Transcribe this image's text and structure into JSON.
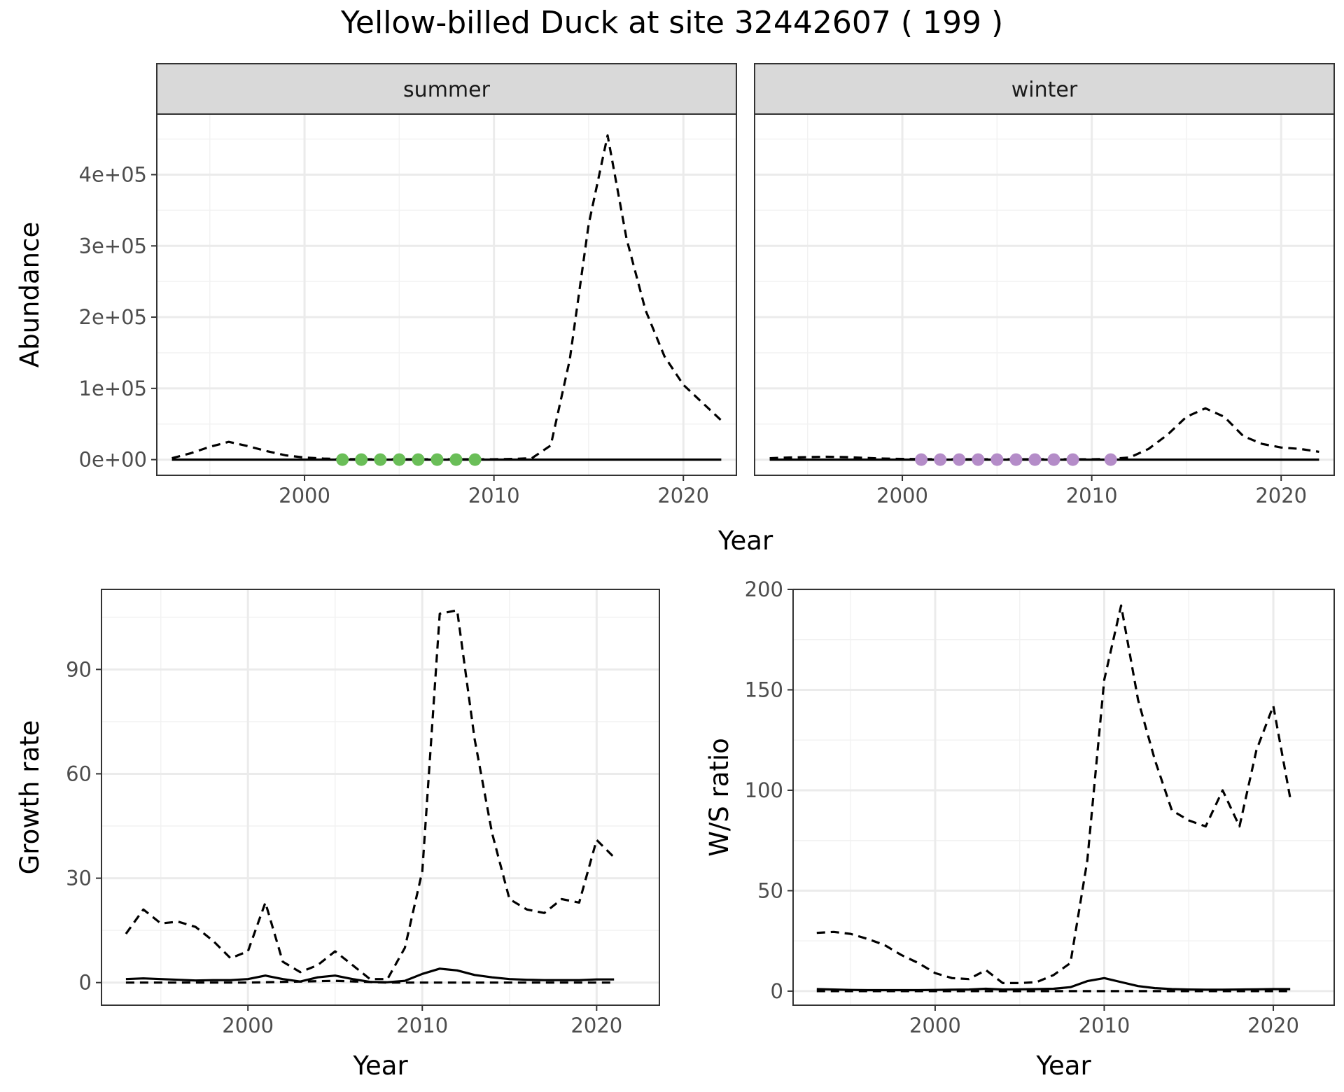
{
  "title": "Yellow-billed Duck at site 32442607 ( 199 )",
  "chart_data": [
    {
      "id": "abundance",
      "type": "line",
      "facets": [
        "summer",
        "winter"
      ],
      "xlabel": "Year",
      "ylabel": "Abundance",
      "xlim": [
        1992.2,
        2022.8
      ],
      "ylim": [
        -22000,
        485000
      ],
      "x_ticks": [
        2000,
        2010,
        2020
      ],
      "y_ticks": [
        0,
        100000,
        200000,
        300000,
        400000
      ],
      "y_tick_labels": [
        "0e+00",
        "1e+05",
        "2e+05",
        "3e+05",
        "4e+05"
      ],
      "grid": true,
      "panels": [
        {
          "facet": "summer",
          "point_color": "#6ABE58",
          "series": [
            {
              "style": "dashed",
              "x": [
                1993,
                1994,
                1995,
                1996,
                1997,
                1998,
                1999,
                2000,
                2001,
                2002,
                2003,
                2004,
                2005,
                2006,
                2007,
                2008,
                2009,
                2010,
                2011,
                2012,
                2013,
                2014,
                2015,
                2016,
                2017,
                2018,
                2019,
                2020,
                2021,
                2022
              ],
              "y": [
                2000,
                9000,
                18000,
                25000,
                19000,
                12000,
                6000,
                3000,
                1500,
                800,
                500,
                500,
                500,
                500,
                500,
                500,
                500,
                500,
                1000,
                2000,
                20000,
                140000,
                330000,
                455000,
                310000,
                210000,
                145000,
                105000,
                80000,
                55000
              ]
            },
            {
              "style": "solid",
              "x": [
                1993,
                1996,
                2000,
                2005,
                2010,
                2015,
                2020,
                2022
              ],
              "y": [
                0,
                0,
                0,
                0,
                0,
                0,
                0,
                0
              ]
            }
          ],
          "points": {
            "x": [
              2002,
              2003,
              2004,
              2005,
              2006,
              2007,
              2008,
              2009
            ],
            "y": [
              0,
              0,
              0,
              0,
              0,
              0,
              0,
              0
            ]
          }
        },
        {
          "facet": "winter",
          "point_color": "#B48CC8",
          "series": [
            {
              "style": "dashed",
              "x": [
                1993,
                1994,
                1995,
                1996,
                1997,
                1998,
                1999,
                2000,
                2001,
                2002,
                2003,
                2004,
                2005,
                2006,
                2007,
                2008,
                2009,
                2010,
                2011,
                2012,
                2013,
                2014,
                2015,
                2016,
                2017,
                2018,
                2019,
                2020,
                2021,
                2022
              ],
              "y": [
                2000,
                3000,
                3500,
                4000,
                3500,
                2500,
                1500,
                1000,
                700,
                500,
                500,
                500,
                500,
                500,
                500,
                500,
                500,
                500,
                1000,
                3000,
                15000,
                35000,
                60000,
                72000,
                60000,
                33000,
                22000,
                17000,
                15000,
                11000
              ]
            },
            {
              "style": "solid",
              "x": [
                1993,
                1996,
                2000,
                2005,
                2010,
                2015,
                2020,
                2022
              ],
              "y": [
                0,
                0,
                0,
                0,
                0,
                0,
                0,
                0
              ]
            }
          ],
          "points": {
            "x": [
              2001,
              2002,
              2003,
              2004,
              2005,
              2006,
              2007,
              2008,
              2009,
              2011
            ],
            "y": [
              0,
              0,
              0,
              0,
              0,
              0,
              0,
              0,
              0,
              0
            ]
          }
        }
      ]
    },
    {
      "id": "growth",
      "type": "line",
      "xlabel": "Year",
      "ylabel": "Growth rate",
      "xlim": [
        1991.6,
        2023.6
      ],
      "ylim": [
        -6.5,
        113
      ],
      "x_ticks": [
        2000,
        2010,
        2020
      ],
      "y_ticks": [
        0,
        30,
        60,
        90
      ],
      "y_tick_labels": [
        "0",
        "30",
        "60",
        "90"
      ],
      "grid": true,
      "series": [
        {
          "style": "dashed",
          "x": [
            1993,
            1994,
            1995,
            1996,
            1997,
            1998,
            1999,
            2000,
            2001,
            2002,
            2003,
            2004,
            2005,
            2006,
            2007,
            2008,
            2009,
            2010,
            2011,
            2012,
            2013,
            2014,
            2015,
            2016,
            2017,
            2018,
            2019,
            2020,
            2021
          ],
          "y": [
            14,
            21,
            17,
            17.5,
            16,
            12,
            7,
            9,
            23,
            6,
            3,
            5,
            9,
            5,
            1,
            1,
            10,
            32,
            106,
            107,
            70,
            43,
            24,
            21,
            20,
            24,
            23,
            41,
            36
          ]
        },
        {
          "style": "dashed",
          "x": [
            1993,
            1996,
            2000,
            2005,
            2008,
            2010,
            2015,
            2020,
            2021
          ],
          "y": [
            0,
            0,
            0,
            0.5,
            0,
            0,
            0,
            0,
            0
          ]
        },
        {
          "style": "solid",
          "x": [
            1993,
            1994,
            1995,
            1996,
            1997,
            1998,
            1999,
            2000,
            2001,
            2002,
            2003,
            2004,
            2005,
            2006,
            2007,
            2008,
            2009,
            2010,
            2011,
            2012,
            2013,
            2014,
            2015,
            2016,
            2017,
            2018,
            2019,
            2020,
            2021
          ],
          "y": [
            1,
            1.2,
            1,
            0.8,
            0.6,
            0.7,
            0.7,
            1,
            2,
            1,
            0.3,
            1.5,
            2,
            1,
            0.2,
            0.1,
            0.5,
            2.5,
            4,
            3.5,
            2.2,
            1.5,
            1,
            0.8,
            0.7,
            0.7,
            0.7,
            0.9,
            0.9
          ]
        }
      ]
    },
    {
      "id": "ratio",
      "type": "line",
      "xlabel": "Year",
      "ylabel": "W/S ratio",
      "xlim": [
        1991.6,
        2023.6
      ],
      "ylim": [
        -7,
        200
      ],
      "x_ticks": [
        2000,
        2010,
        2020
      ],
      "y_ticks": [
        0,
        50,
        100,
        150,
        200
      ],
      "y_tick_labels": [
        "0",
        "50",
        "100",
        "150",
        "200"
      ],
      "grid": true,
      "series": [
        {
          "style": "dashed",
          "x": [
            1993,
            1994,
            1995,
            1996,
            1997,
            1998,
            1999,
            2000,
            2001,
            2002,
            2003,
            2004,
            2005,
            2006,
            2007,
            2008,
            2009,
            2010,
            2011,
            2012,
            2013,
            2014,
            2015,
            2016,
            2017,
            2018,
            2019,
            2020,
            2021
          ],
          "y": [
            29,
            29.5,
            28.5,
            26,
            23,
            18,
            14,
            9,
            6.5,
            6,
            10.5,
            4,
            4,
            4.5,
            8,
            14,
            65,
            155,
            192,
            145,
            115,
            90,
            85,
            82,
            100,
            82,
            120,
            142,
            96
          ]
        },
        {
          "style": "dashed",
          "x": [
            1993,
            1996,
            2000,
            2005,
            2010,
            2015,
            2020,
            2021
          ],
          "y": [
            0,
            0,
            0,
            0,
            0,
            0,
            0,
            0
          ]
        },
        {
          "style": "solid",
          "x": [
            1993,
            1994,
            1995,
            1996,
            1997,
            1998,
            1999,
            2000,
            2001,
            2002,
            2003,
            2004,
            2005,
            2006,
            2007,
            2008,
            2009,
            2010,
            2011,
            2012,
            2013,
            2014,
            2015,
            2016,
            2017,
            2018,
            2019,
            2020,
            2021
          ],
          "y": [
            1,
            0.8,
            0.6,
            0.5,
            0.5,
            0.5,
            0.5,
            0.6,
            0.7,
            0.8,
            1.2,
            0.8,
            0.9,
            1,
            1.2,
            2,
            5,
            6.5,
            4.5,
            2.5,
            1.5,
            1,
            0.8,
            0.7,
            0.7,
            0.8,
            0.9,
            1,
            1
          ]
        }
      ]
    }
  ]
}
